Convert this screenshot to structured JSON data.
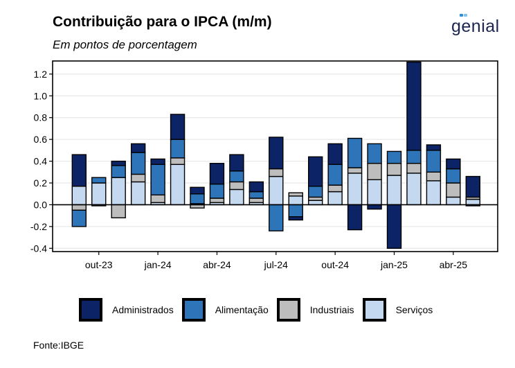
{
  "header": {
    "title": "Contribuição para o IPCA (m/m)",
    "subtitle": "Em pontos de porcentagem",
    "logo_text": "genial"
  },
  "footer": {
    "source": "Fonte:IBGE"
  },
  "colors": {
    "Administrados": "#0c2466",
    "Alimentação": "#2e74b8",
    "Industriais": "#bdbdbd",
    "Serviços": "#c4d9ef",
    "logo_dot_1": "#2d8fd5",
    "logo_dot_2": "#7fc3ea"
  },
  "chart_data": {
    "type": "bar",
    "stacked": true,
    "title": "Contribuição para o IPCA (m/m)",
    "subtitle": "Em pontos de porcentagem",
    "categories": [
      "set-23",
      "out-23",
      "nov-23",
      "dez-23",
      "jan-24",
      "fev-24",
      "mar-24",
      "abr-24",
      "mai-24",
      "jun-24",
      "jul-24",
      "ago-24",
      "set-24",
      "out-24",
      "nov-24",
      "dez-24",
      "jan-25",
      "fev-25",
      "mar-25",
      "abr-25",
      "mai-25"
    ],
    "x_tick_labels": [
      {
        "category": "out-23",
        "label": "out-23"
      },
      {
        "category": "jan-24",
        "label": "jan-24"
      },
      {
        "category": "abr-24",
        "label": "abr-24"
      },
      {
        "category": "jul-24",
        "label": "jul-24"
      },
      {
        "category": "out-24",
        "label": "out-24"
      },
      {
        "category": "jan-25",
        "label": "jan-25"
      },
      {
        "category": "abr-25",
        "label": "abr-25"
      }
    ],
    "series": [
      {
        "name": "Serviços",
        "values": [
          0.17,
          0.2,
          0.25,
          0.21,
          0.02,
          0.37,
          0.01,
          0.02,
          0.14,
          0.02,
          0.26,
          0.08,
          0.04,
          0.12,
          0.29,
          0.23,
          0.27,
          0.29,
          0.22,
          0.07,
          0.05
        ]
      },
      {
        "name": "Industriais",
        "values": [
          -0.05,
          -0.01,
          -0.12,
          0.07,
          0.07,
          0.06,
          -0.03,
          0.04,
          0.07,
          0.04,
          0.07,
          0.03,
          0.03,
          0.06,
          0.05,
          0.15,
          0.11,
          0.09,
          0.08,
          0.13,
          0.02
        ]
      },
      {
        "name": "Alimentação",
        "values": [
          -0.15,
          0.05,
          0.11,
          0.2,
          0.28,
          0.17,
          0.09,
          0.13,
          0.1,
          0.06,
          -0.24,
          -0.11,
          0.1,
          0.19,
          0.27,
          0.18,
          0.11,
          0.12,
          0.2,
          0.13,
          -0.01
        ]
      },
      {
        "name": "Administrados",
        "values": [
          0.29,
          0.0,
          0.04,
          0.08,
          0.05,
          0.23,
          0.06,
          0.19,
          0.15,
          0.09,
          0.29,
          -0.03,
          0.27,
          0.19,
          -0.23,
          -0.04,
          -0.4,
          0.81,
          0.05,
          0.09,
          0.19
        ]
      }
    ],
    "ylim": [
      -0.43,
      1.32
    ],
    "y_ticks": [
      -0.4,
      -0.2,
      0.0,
      0.2,
      0.4,
      0.6,
      0.8,
      1.0,
      1.2
    ],
    "y_tick_labels": [
      "-0.4",
      "-0.2",
      "0.0",
      "0.2",
      "0.4",
      "0.6",
      "0.8",
      "1.0",
      "1.2"
    ],
    "xlabel": "",
    "ylabel": "",
    "grid": "horizontal",
    "legend": {
      "position": "bottom",
      "entries": [
        "Administrados",
        "Alimentação",
        "Industriais",
        "Serviços"
      ]
    }
  }
}
